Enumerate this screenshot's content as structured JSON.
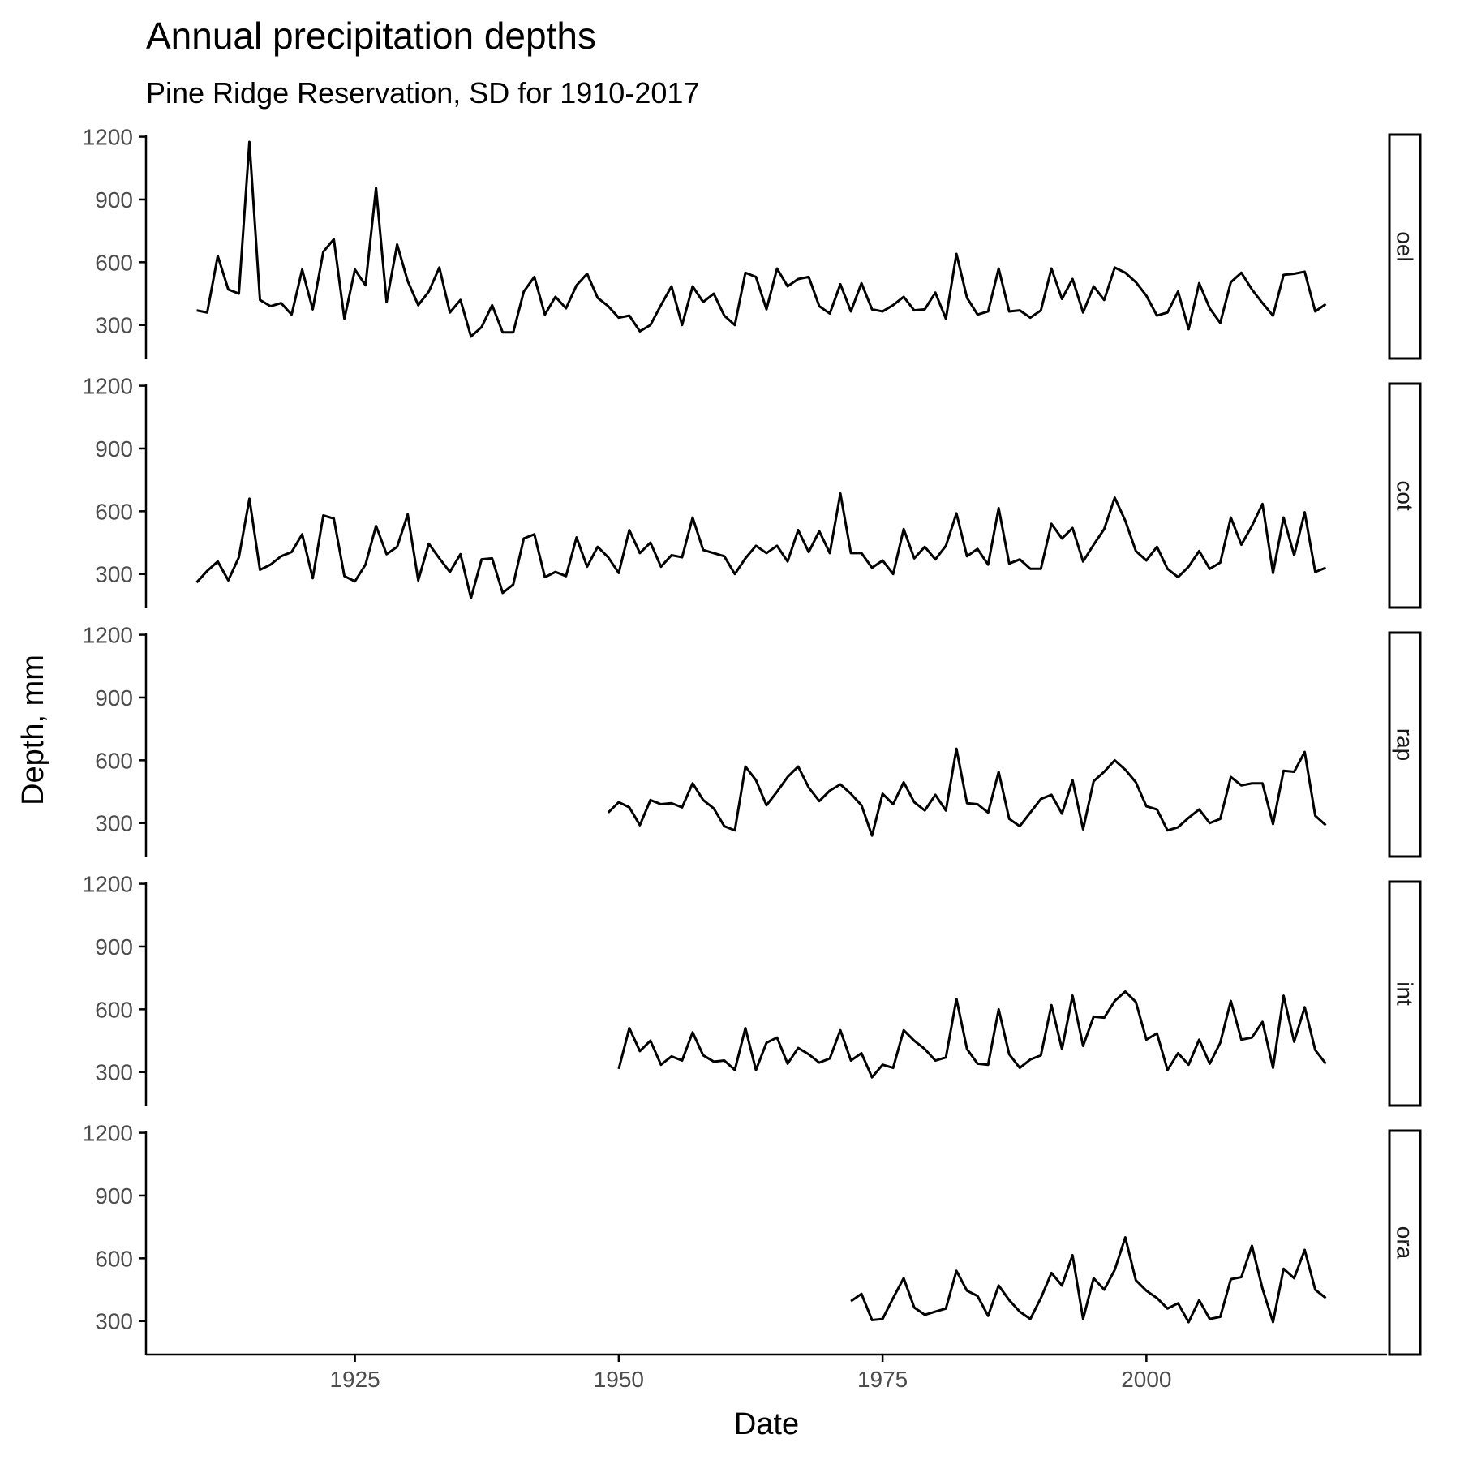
{
  "chart_data": {
    "type": "line",
    "title": "Annual precipitation depths",
    "subtitle": "Pine Ridge Reservation, SD for 1910-2017",
    "xlabel": "Date",
    "ylabel": "Depth, mm",
    "xlim": [
      1905.2,
      2022.8
    ],
    "ylim": [
      140,
      1210
    ],
    "x_ticks": [
      1925,
      1950,
      1975,
      2000
    ],
    "y_ticks": [
      300,
      600,
      900,
      1200
    ],
    "grid": false,
    "line_color": "#000000",
    "facets": [
      {
        "name": "oel",
        "start_year": 1910,
        "values": [
          370,
          360,
          630,
          470,
          450,
          1175,
          420,
          390,
          405,
          350,
          565,
          375,
          650,
          710,
          330,
          565,
          490,
          955,
          410,
          685,
          510,
          395,
          460,
          575,
          360,
          420,
          245,
          290,
          395,
          265,
          265,
          460,
          530,
          350,
          435,
          380,
          490,
          545,
          430,
          390,
          335,
          345,
          270,
          300,
          395,
          485,
          300,
          485,
          410,
          450,
          345,
          300,
          550,
          530,
          375,
          570,
          485,
          520,
          530,
          390,
          355,
          495,
          365,
          500,
          375,
          365,
          395,
          435,
          370,
          375,
          455,
          330,
          640,
          430,
          350,
          365,
          570,
          365,
          370,
          335,
          370,
          570,
          425,
          520,
          360,
          485,
          420,
          575,
          550,
          505,
          440,
          345,
          360,
          460,
          280,
          500,
          380,
          310,
          505,
          550,
          470,
          405,
          345,
          540,
          545,
          555,
          365,
          400
        ]
      },
      {
        "name": "cot",
        "start_year": 1910,
        "values": [
          260,
          315,
          360,
          270,
          380,
          660,
          320,
          345,
          385,
          405,
          490,
          280,
          580,
          565,
          290,
          265,
          345,
          530,
          395,
          430,
          585,
          270,
          445,
          375,
          310,
          395,
          185,
          370,
          375,
          210,
          250,
          470,
          490,
          285,
          310,
          290,
          475,
          335,
          430,
          380,
          305,
          510,
          400,
          450,
          335,
          390,
          380,
          570,
          415,
          400,
          385,
          300,
          375,
          435,
          400,
          435,
          360,
          510,
          405,
          505,
          400,
          685,
          400,
          400,
          330,
          365,
          300,
          515,
          375,
          430,
          370,
          435,
          590,
          385,
          420,
          345,
          615,
          350,
          370,
          325,
          325,
          540,
          470,
          520,
          360,
          440,
          515,
          665,
          555,
          410,
          365,
          430,
          325,
          285,
          335,
          410,
          325,
          355,
          570,
          440,
          530,
          635,
          305,
          570,
          390,
          595,
          310,
          330
        ]
      },
      {
        "name": "rap",
        "start_year": 1949,
        "values": [
          350,
          400,
          375,
          290,
          410,
          390,
          395,
          375,
          490,
          410,
          370,
          285,
          265,
          570,
          505,
          385,
          450,
          520,
          570,
          470,
          405,
          455,
          485,
          440,
          385,
          240,
          440,
          390,
          495,
          400,
          360,
          435,
          360,
          655,
          395,
          390,
          350,
          545,
          320,
          285,
          350,
          415,
          435,
          345,
          505,
          270,
          500,
          545,
          600,
          555,
          495,
          380,
          365,
          265,
          280,
          325,
          365,
          300,
          320,
          520,
          480,
          490,
          490,
          295,
          550,
          545,
          640,
          335,
          290
        ]
      },
      {
        "name": "int",
        "start_year": 1950,
        "values": [
          315,
          510,
          400,
          450,
          335,
          375,
          355,
          490,
          380,
          350,
          355,
          310,
          510,
          310,
          440,
          465,
          340,
          415,
          385,
          345,
          365,
          500,
          355,
          390,
          275,
          335,
          320,
          500,
          450,
          410,
          355,
          370,
          650,
          410,
          340,
          335,
          600,
          385,
          320,
          360,
          380,
          620,
          410,
          665,
          425,
          565,
          560,
          640,
          685,
          635,
          455,
          485,
          310,
          390,
          335,
          455,
          340,
          440,
          640,
          455,
          465,
          540,
          320,
          665,
          445,
          610,
          405,
          340
        ]
      },
      {
        "name": "ora",
        "start_year": 1972,
        "values": [
          395,
          430,
          305,
          310,
          410,
          505,
          365,
          330,
          345,
          360,
          540,
          445,
          420,
          325,
          470,
          400,
          345,
          310,
          410,
          530,
          470,
          615,
          310,
          505,
          450,
          545,
          700,
          495,
          445,
          410,
          360,
          385,
          295,
          400,
          310,
          320,
          500,
          510,
          660,
          455,
          295,
          550,
          505,
          640,
          450,
          410
        ]
      }
    ]
  }
}
